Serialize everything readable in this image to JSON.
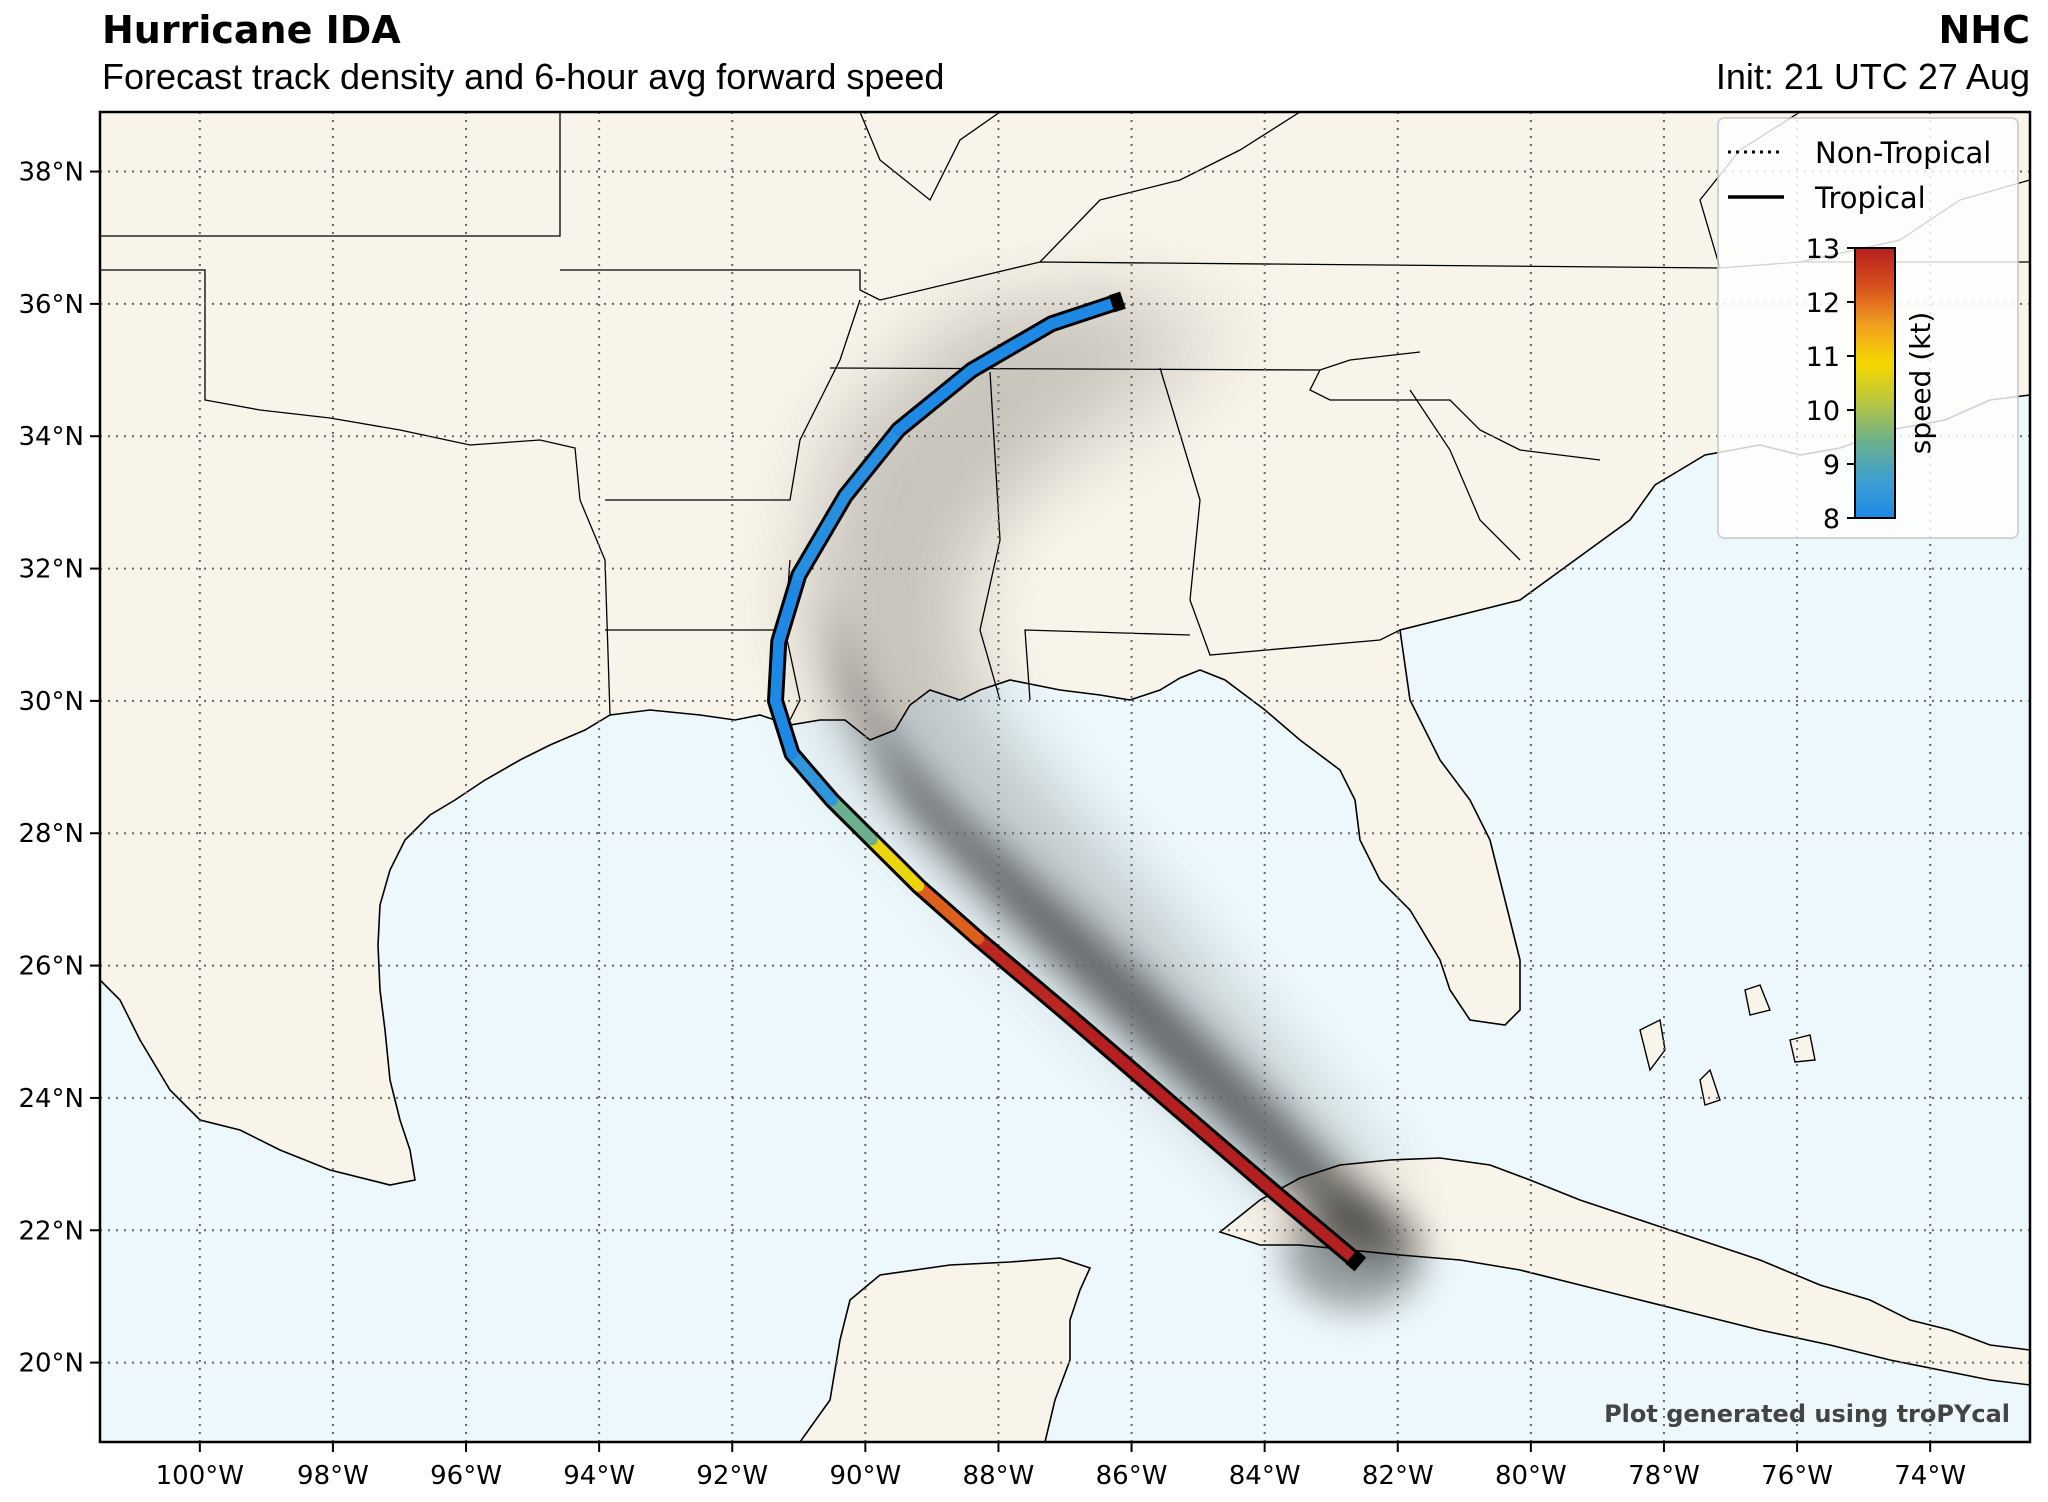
{
  "header": {
    "storm_title": "Hurricane IDA",
    "subtitle": "Forecast track density and 6-hour avg forward speed",
    "agency": "NHC",
    "init_time": "Init: 21 UTC 27 Aug"
  },
  "map": {
    "projection": "PlateCarree",
    "lon_range": [
      -101.5,
      -72.5
    ],
    "lat_range": [
      18.8,
      38.9
    ],
    "gridlines": "dotted",
    "colors": {
      "land": "#f8f4ea",
      "ocean": "#ecf8fb",
      "coast": "#000000",
      "grid": "#666666",
      "density_shade": "#5a5a5a"
    },
    "lat_labels": [
      "20°N",
      "22°N",
      "24°N",
      "26°N",
      "28°N",
      "30°N",
      "32°N",
      "34°N",
      "36°N",
      "38°N"
    ],
    "lon_labels": [
      "100°W",
      "98°W",
      "96°W",
      "94°W",
      "92°W",
      "90°W",
      "88°W",
      "86°W",
      "84°W",
      "82°W",
      "80°W",
      "78°W",
      "76°W",
      "74°W"
    ]
  },
  "track": {
    "points": [
      {
        "lon": -82.7,
        "lat": 21.6,
        "speed": 13
      },
      {
        "lon": -84.0,
        "lat": 22.7,
        "speed": 13
      },
      {
        "lon": -85.5,
        "lat": 24.0,
        "speed": 13
      },
      {
        "lon": -87.0,
        "lat": 25.3,
        "speed": 13
      },
      {
        "lon": -88.3,
        "lat": 26.4,
        "speed": 12.8
      },
      {
        "lon": -89.2,
        "lat": 27.2,
        "speed": 11.5
      },
      {
        "lon": -89.9,
        "lat": 27.9,
        "speed": 10
      },
      {
        "lon": -90.5,
        "lat": 28.5,
        "speed": 8.8
      },
      {
        "lon": -91.1,
        "lat": 29.2,
        "speed": 8
      },
      {
        "lon": -91.35,
        "lat": 30.0,
        "speed": 8
      },
      {
        "lon": -91.3,
        "lat": 30.9,
        "speed": 8
      },
      {
        "lon": -91.0,
        "lat": 31.9,
        "speed": 8
      },
      {
        "lon": -90.3,
        "lat": 33.1,
        "speed": 8.4
      },
      {
        "lon": -89.5,
        "lat": 34.1,
        "speed": 8
      },
      {
        "lon": -88.4,
        "lat": 35.0,
        "speed": 8
      },
      {
        "lon": -87.2,
        "lat": 35.7,
        "speed": 8
      },
      {
        "lon": -86.3,
        "lat": 36.0,
        "speed": 8
      }
    ]
  },
  "legend": {
    "non_tropical_label": "Non-Tropical",
    "tropical_label": "Tropical"
  },
  "colorbar": {
    "label": "speed (kt)",
    "min": 8,
    "max": 13,
    "ticks": [
      "8",
      "9",
      "10",
      "11",
      "12",
      "13"
    ],
    "colors": [
      "#1e88e5",
      "#3fa0d0",
      "#6db08a",
      "#b8c640",
      "#f5d800",
      "#f0a020",
      "#d8501e",
      "#b42020"
    ]
  },
  "footer": {
    "credit": "Plot generated using troPYcal"
  }
}
